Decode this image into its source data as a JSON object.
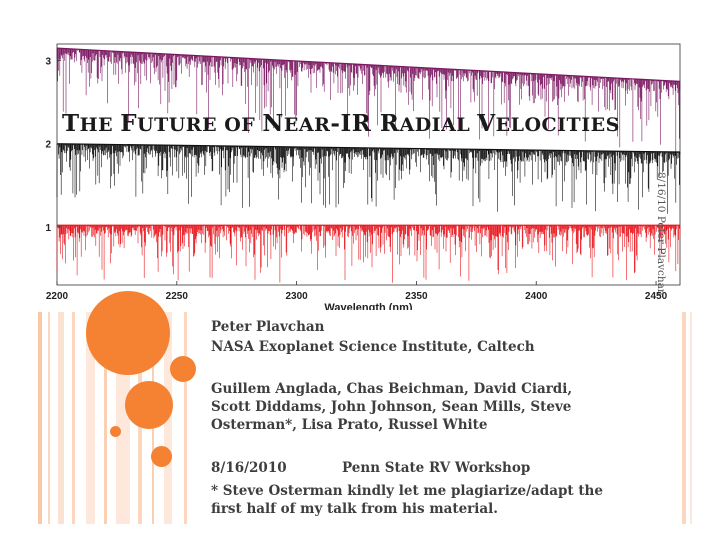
{
  "slide": {
    "title_parts": [
      {
        "text": "T",
        "big": true
      },
      {
        "text": "HE ",
        "big": false
      },
      {
        "text": "F",
        "big": true
      },
      {
        "text": "UTURE OF ",
        "big": false
      },
      {
        "text": "N",
        "big": true
      },
      {
        "text": "EAR",
        "big": false
      },
      {
        "text": "-IR ",
        "big": true
      },
      {
        "text": "R",
        "big": true
      },
      {
        "text": "ADIAL ",
        "big": false
      },
      {
        "text": "V",
        "big": true
      },
      {
        "text": "ELOCITIES",
        "big": false
      }
    ],
    "side_label": "8/16/10    Peter Plavchan",
    "presenter": "Peter Plavchan",
    "affiliation": "NASA Exoplanet Science Institute, Caltech",
    "collaborators": [
      "Guillem Anglada, Chas Beichman, David Ciardi,",
      "Scott Diddams, John Johnson, Sean Mills, Steve",
      "Osterman*, Lisa Prato, Russel White"
    ],
    "date": "8/16/2010",
    "event": "Penn State RV Workshop",
    "footnote": [
      "* Steve Osterman kindly let me plagiarize/adapt the",
      "first half of my talk from his material."
    ],
    "colors": {
      "accent": "#f58232",
      "stripe_light": "#fbe0cf",
      "purple": "#7a1760",
      "black": "#111111",
      "red": "#e8141c"
    }
  },
  "chart_data": {
    "type": "line",
    "xlabel": "Wavelength (nm)",
    "xlim": [
      2200,
      2460
    ],
    "x_ticks": [
      2200,
      2250,
      2300,
      2350,
      2400,
      2450
    ],
    "ylim": [
      0.3,
      3.2
    ],
    "y_ticks": [
      1,
      2,
      3
    ],
    "grid": false,
    "series": [
      {
        "color": "#7a1760",
        "baseline_start": 3.15,
        "baseline_end": 2.75,
        "depth_max": 0.9
      },
      {
        "color": "#111111",
        "baseline_start": 2.0,
        "baseline_end": 1.9,
        "depth_max": 0.75
      },
      {
        "color": "#e8141c",
        "baseline_start": 1.02,
        "baseline_end": 1.02,
        "depth_max": 0.7
      }
    ]
  }
}
